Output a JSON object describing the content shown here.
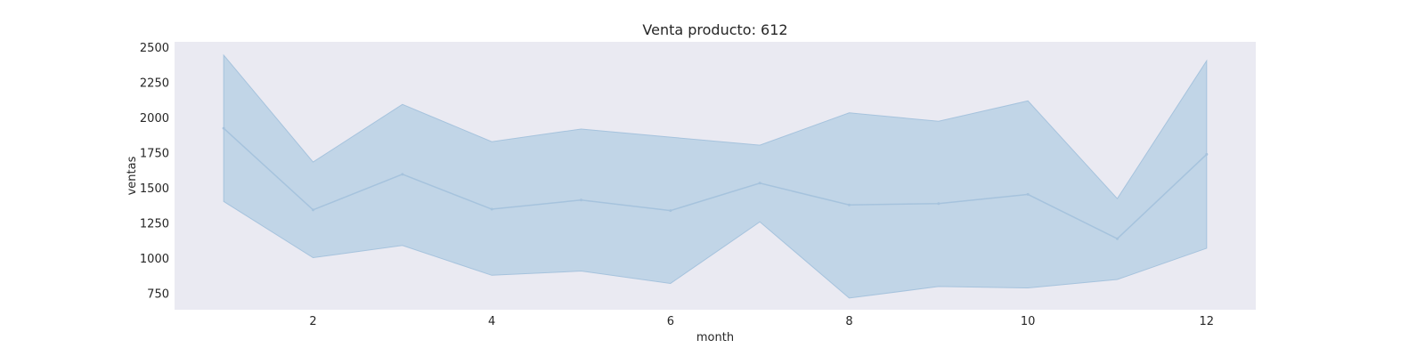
{
  "chart_data": {
    "type": "line",
    "title": "Venta producto: 612",
    "xlabel": "month",
    "ylabel": "ventas",
    "x": [
      1,
      2,
      3,
      4,
      5,
      6,
      7,
      8,
      9,
      10,
      11,
      12
    ],
    "series": [
      {
        "values": [
          1925,
          1345,
          1598,
          1350,
          1415,
          1340,
          1535,
          1380,
          1390,
          1455,
          1140,
          1740
        ],
        "upper": [
          2445,
          1685,
          2095,
          1830,
          1920,
          1862,
          1805,
          2035,
          1975,
          2120,
          1425,
          2405
        ],
        "lower": [
          1405,
          1005,
          1092,
          880,
          910,
          822,
          1260,
          718,
          800,
          790,
          850,
          1072
        ]
      }
    ],
    "xticks": [
      2,
      4,
      6,
      8,
      10,
      12
    ],
    "yticks": [
      750,
      1000,
      1250,
      1500,
      1750,
      2000,
      2250,
      2500
    ],
    "xlim": [
      0.45,
      12.55
    ],
    "ylim": [
      635,
      2540
    ],
    "grid": false,
    "colors": {
      "plot_background": "#eaeaf2",
      "band_fill": "#b3cde3",
      "line": "#a6c3dd",
      "text": "#262626"
    }
  }
}
